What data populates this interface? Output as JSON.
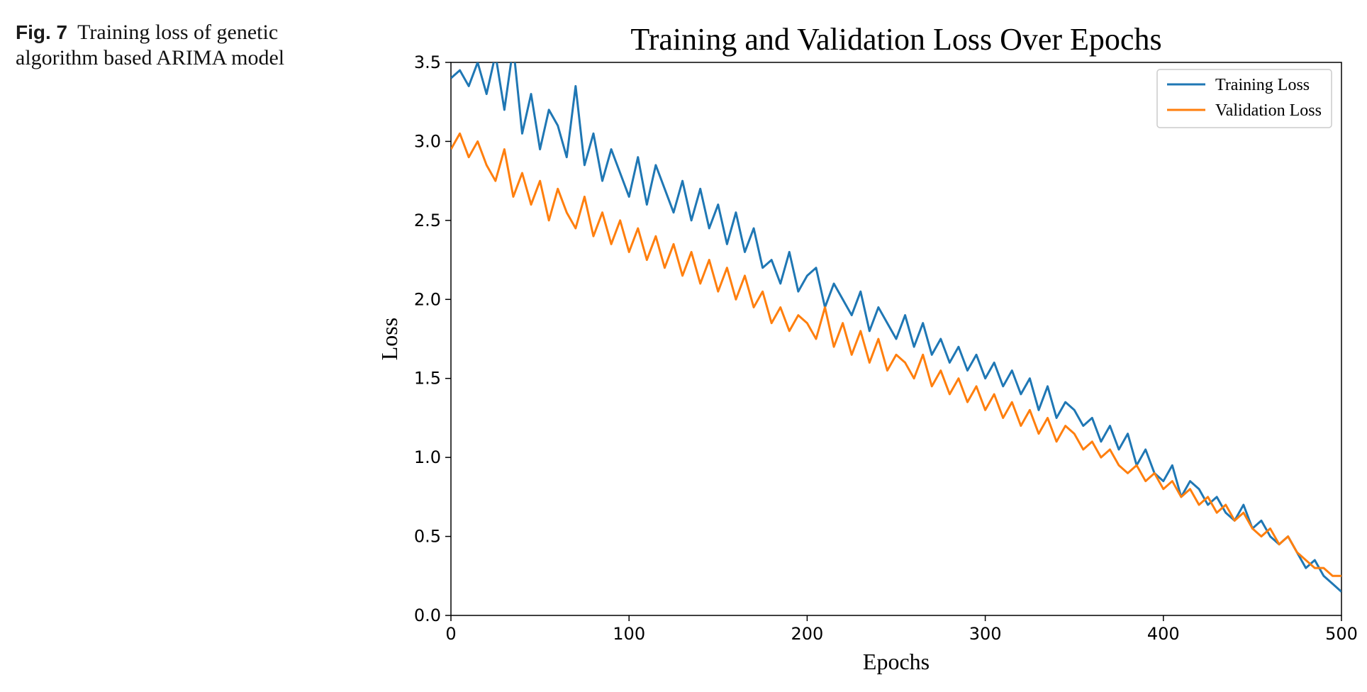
{
  "caption": {
    "label": "Fig. 7",
    "text": "Training loss of genetic algorithm based ARIMA model"
  },
  "colors": {
    "training": "#1f77b4",
    "validation": "#ff7f0e"
  },
  "chart_data": {
    "type": "line",
    "title": "Training and Validation Loss Over Epochs",
    "xlabel": "Epochs",
    "ylabel": "Loss",
    "xlim": [
      0,
      500
    ],
    "ylim": [
      0,
      3.5
    ],
    "xticks": [
      0,
      100,
      200,
      300,
      400,
      500
    ],
    "yticks": [
      0.0,
      0.5,
      1.0,
      1.5,
      2.0,
      2.5,
      3.0,
      3.5
    ],
    "grid": false,
    "legend_position": "top-right",
    "series": [
      {
        "name": "Training Loss",
        "x": [
          0,
          5,
          10,
          15,
          20,
          25,
          30,
          35,
          40,
          45,
          50,
          55,
          60,
          65,
          70,
          75,
          80,
          85,
          90,
          95,
          100,
          105,
          110,
          115,
          120,
          125,
          130,
          135,
          140,
          145,
          150,
          155,
          160,
          165,
          170,
          175,
          180,
          185,
          190,
          195,
          200,
          205,
          210,
          215,
          220,
          225,
          230,
          235,
          240,
          245,
          250,
          255,
          260,
          265,
          270,
          275,
          280,
          285,
          290,
          295,
          300,
          305,
          310,
          315,
          320,
          325,
          330,
          335,
          340,
          345,
          350,
          355,
          360,
          365,
          370,
          375,
          380,
          385,
          390,
          395,
          400,
          405,
          410,
          415,
          420,
          425,
          430,
          435,
          440,
          445,
          450,
          455,
          460,
          465,
          470,
          475,
          480,
          485,
          490,
          495,
          500
        ],
        "y": [
          3.4,
          3.45,
          3.35,
          3.5,
          3.3,
          3.55,
          3.2,
          3.6,
          3.05,
          3.3,
          2.95,
          3.2,
          3.1,
          2.9,
          3.35,
          2.85,
          3.05,
          2.75,
          2.95,
          2.8,
          2.65,
          2.9,
          2.6,
          2.85,
          2.7,
          2.55,
          2.75,
          2.5,
          2.7,
          2.45,
          2.6,
          2.35,
          2.55,
          2.3,
          2.45,
          2.2,
          2.25,
          2.1,
          2.3,
          2.05,
          2.15,
          2.2,
          1.95,
          2.1,
          2.0,
          1.9,
          2.05,
          1.8,
          1.95,
          1.85,
          1.75,
          1.9,
          1.7,
          1.85,
          1.65,
          1.75,
          1.6,
          1.7,
          1.55,
          1.65,
          1.5,
          1.6,
          1.45,
          1.55,
          1.4,
          1.5,
          1.3,
          1.45,
          1.25,
          1.35,
          1.3,
          1.2,
          1.25,
          1.1,
          1.2,
          1.05,
          1.15,
          0.95,
          1.05,
          0.9,
          0.85,
          0.95,
          0.75,
          0.85,
          0.8,
          0.7,
          0.75,
          0.65,
          0.6,
          0.7,
          0.55,
          0.6,
          0.5,
          0.45,
          0.5,
          0.4,
          0.3,
          0.35,
          0.25,
          0.2,
          0.15
        ]
      },
      {
        "name": "Validation Loss",
        "x": [
          0,
          5,
          10,
          15,
          20,
          25,
          30,
          35,
          40,
          45,
          50,
          55,
          60,
          65,
          70,
          75,
          80,
          85,
          90,
          95,
          100,
          105,
          110,
          115,
          120,
          125,
          130,
          135,
          140,
          145,
          150,
          155,
          160,
          165,
          170,
          175,
          180,
          185,
          190,
          195,
          200,
          205,
          210,
          215,
          220,
          225,
          230,
          235,
          240,
          245,
          250,
          255,
          260,
          265,
          270,
          275,
          280,
          285,
          290,
          295,
          300,
          305,
          310,
          315,
          320,
          325,
          330,
          335,
          340,
          345,
          350,
          355,
          360,
          365,
          370,
          375,
          380,
          385,
          390,
          395,
          400,
          405,
          410,
          415,
          420,
          425,
          430,
          435,
          440,
          445,
          450,
          455,
          460,
          465,
          470,
          475,
          480,
          485,
          490,
          495,
          500
        ],
        "y": [
          2.95,
          3.05,
          2.9,
          3.0,
          2.85,
          2.75,
          2.95,
          2.65,
          2.8,
          2.6,
          2.75,
          2.5,
          2.7,
          2.55,
          2.45,
          2.65,
          2.4,
          2.55,
          2.35,
          2.5,
          2.3,
          2.45,
          2.25,
          2.4,
          2.2,
          2.35,
          2.15,
          2.3,
          2.1,
          2.25,
          2.05,
          2.2,
          2.0,
          2.15,
          1.95,
          2.05,
          1.85,
          1.95,
          1.8,
          1.9,
          1.85,
          1.75,
          1.95,
          1.7,
          1.85,
          1.65,
          1.8,
          1.6,
          1.75,
          1.55,
          1.65,
          1.6,
          1.5,
          1.65,
          1.45,
          1.55,
          1.4,
          1.5,
          1.35,
          1.45,
          1.3,
          1.4,
          1.25,
          1.35,
          1.2,
          1.3,
          1.15,
          1.25,
          1.1,
          1.2,
          1.15,
          1.05,
          1.1,
          1.0,
          1.05,
          0.95,
          0.9,
          0.95,
          0.85,
          0.9,
          0.8,
          0.85,
          0.75,
          0.8,
          0.7,
          0.75,
          0.65,
          0.7,
          0.6,
          0.65,
          0.55,
          0.5,
          0.55,
          0.45,
          0.5,
          0.4,
          0.35,
          0.3,
          0.3,
          0.25,
          0.25
        ]
      }
    ]
  }
}
